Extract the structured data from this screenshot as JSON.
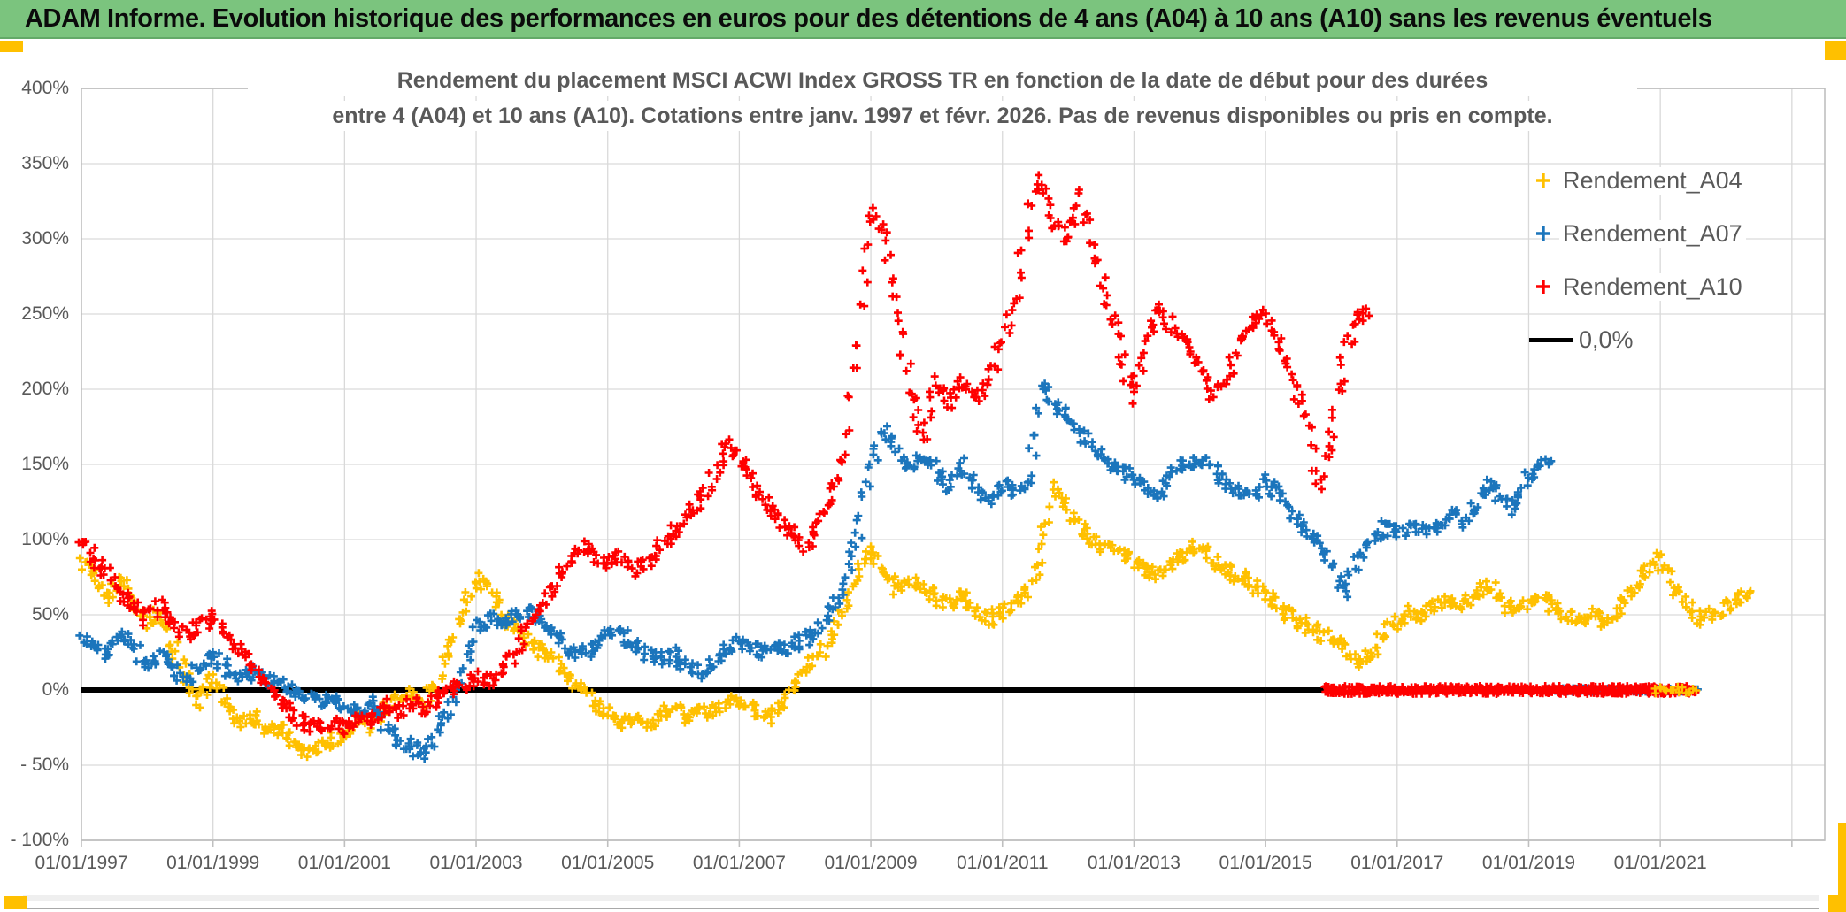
{
  "header": {
    "title": "ADAM Informe. Evolution historique des performances en euros pour des détentions de 4 ans (A04) à 10 ans (A10) sans les revenus éventuels",
    "bg_color": "#7BC47E",
    "accent_color": "#FFC000"
  },
  "chart_data": {
    "type": "scatter",
    "title_line1": "Rendement du placement MSCI ACWI Index GROSS TR en fonction de la date de début pour des durées",
    "title_line2": "entre 4 (A04) et 10 ans (A10). Cotations entre janv. 1997 et févr. 2026. Pas de revenus disponibles ou pris en compte.",
    "xlim": [
      1997.0,
      2023.5
    ],
    "ylim": [
      -100,
      400
    ],
    "grid": true,
    "legend_position": "right-inside",
    "y_ticks": [
      {
        "value": 400,
        "label": "400%"
      },
      {
        "value": 350,
        "label": "350%"
      },
      {
        "value": 300,
        "label": "300%"
      },
      {
        "value": 250,
        "label": "250%"
      },
      {
        "value": 200,
        "label": "200%"
      },
      {
        "value": 150,
        "label": "150%"
      },
      {
        "value": 100,
        "label": "100%"
      },
      {
        "value": 50,
        "label": "50%"
      },
      {
        "value": 0,
        "label": "0%"
      },
      {
        "value": -50,
        "label": "- 50%"
      },
      {
        "value": -100,
        "label": "- 100%"
      }
    ],
    "x_ticks": [
      {
        "year": 1997,
        "label": "01/01/1997"
      },
      {
        "year": 1999,
        "label": "01/01/1999"
      },
      {
        "year": 2001,
        "label": "01/01/2001"
      },
      {
        "year": 2003,
        "label": "01/01/2003"
      },
      {
        "year": 2005,
        "label": "01/01/2005"
      },
      {
        "year": 2007,
        "label": "01/01/2007"
      },
      {
        "year": 2009,
        "label": "01/01/2009"
      },
      {
        "year": 2011,
        "label": "01/01/2011"
      },
      {
        "year": 2013,
        "label": "01/01/2013"
      },
      {
        "year": 2015,
        "label": "01/01/2015"
      },
      {
        "year": 2017,
        "label": "01/01/2017"
      },
      {
        "year": 2019,
        "label": "01/01/2019"
      },
      {
        "year": 2021,
        "label": "01/01/2021"
      }
    ],
    "zero_line": {
      "label": "0,0%",
      "color": "#000000",
      "value": 0,
      "x_end": 2015.95
    },
    "series": [
      {
        "name": "Rendement_A04",
        "color": "#FFC000",
        "marker": "plus",
        "x_start": 1997.0,
        "x_step": 0.2,
        "values": [
          88,
          75,
          62,
          72,
          58,
          45,
          52,
          28,
          8,
          -8,
          12,
          -12,
          -22,
          -18,
          -28,
          -25,
          -35,
          -42,
          -38,
          -33,
          -28,
          -18,
          -25,
          -12,
          -6,
          -2,
          -8,
          6,
          30,
          55,
          75,
          68,
          50,
          42,
          32,
          26,
          20,
          10,
          0,
          -10,
          -16,
          -22,
          -18,
          -24,
          -16,
          -12,
          -20,
          -12,
          -16,
          -8,
          -6,
          -14,
          -20,
          -12,
          -2,
          12,
          22,
          38,
          55,
          78,
          92,
          78,
          66,
          72,
          66,
          62,
          56,
          66,
          52,
          46,
          52,
          58,
          66,
          95,
          135,
          120,
          108,
          100,
          95,
          90,
          86,
          80,
          76,
          86,
          92,
          96,
          86,
          80,
          76,
          70,
          64,
          55,
          50,
          44,
          38,
          34,
          30,
          18,
          24,
          38,
          45,
          52,
          48,
          55,
          60,
          56,
          66,
          70,
          60,
          52,
          58,
          62,
          55,
          48,
          46,
          50,
          44,
          58,
          66,
          78,
          88,
          70,
          58,
          46,
          50,
          55,
          62
        ],
        "zero_tail": [
          2020.9,
          2021.55
        ],
        "zero_tail_sparse": true
      },
      {
        "name": "Rendement_A07",
        "color": "#1B75BC",
        "marker": "plus",
        "x_start": 1997.0,
        "x_step": 0.2,
        "values": [
          35,
          28,
          24,
          38,
          30,
          16,
          22,
          12,
          8,
          16,
          22,
          14,
          10,
          12,
          8,
          5,
          0,
          -6,
          -8,
          -5,
          -10,
          -16,
          -8,
          -22,
          -32,
          -38,
          -42,
          -30,
          -12,
          15,
          40,
          48,
          42,
          50,
          52,
          45,
          36,
          28,
          24,
          28,
          36,
          38,
          30,
          24,
          20,
          24,
          16,
          12,
          18,
          26,
          32,
          28,
          24,
          30,
          28,
          34,
          42,
          52,
          72,
          105,
          150,
          175,
          158,
          150,
          156,
          146,
          136,
          150,
          132,
          126,
          136,
          132,
          142,
          200,
          190,
          182,
          170,
          160,
          152,
          146,
          140,
          134,
          130,
          144,
          150,
          155,
          148,
          140,
          134,
          130,
          140,
          130,
          118,
          108,
          98,
          88,
          65,
          85,
          98,
          108,
          104,
          110,
          104,
          110,
          116,
          112,
          124,
          136,
          128,
          120,
          140,
          152
        ],
        "zero_tail": [
          2019.3,
          2021.55
        ],
        "zero_tail_sparse": false
      },
      {
        "name": "Rendement_A10",
        "color": "#FF0000",
        "marker": "plus",
        "x_start": 1997.0,
        "x_step": 0.2,
        "values": [
          102,
          88,
          78,
          62,
          56,
          46,
          58,
          42,
          36,
          42,
          48,
          38,
          26,
          16,
          6,
          -6,
          -16,
          -24,
          -26,
          -20,
          -26,
          -16,
          -22,
          -10,
          -16,
          -8,
          -12,
          -5,
          -2,
          4,
          8,
          4,
          14,
          24,
          42,
          58,
          72,
          85,
          95,
          88,
          84,
          90,
          80,
          86,
          96,
          106,
          116,
          126,
          140,
          163,
          152,
          138,
          124,
          114,
          104,
          96,
          110,
          130,
          155,
          230,
          320,
          300,
          250,
          200,
          165,
          205,
          190,
          205,
          195,
          205,
          230,
          260,
          320,
          340,
          310,
          300,
          330,
          290,
          255,
          225,
          195,
          235,
          255,
          240,
          230,
          215,
          195,
          210,
          230,
          245,
          250,
          230,
          210,
          185,
          135,
          170,
          220,
          250
        ],
        "zero_tail": [
          2015.9,
          2021.55
        ],
        "zero_tail_sparse": false
      }
    ],
    "legend": {
      "items": [
        {
          "label": "Rendement_A04",
          "color": "#FFC000",
          "swatch": "plus"
        },
        {
          "label": "Rendement_A07",
          "color": "#1B75BC",
          "swatch": "plus"
        },
        {
          "label": "Rendement_A10",
          "color": "#FF0000",
          "swatch": "plus"
        },
        {
          "label": "0,0%",
          "color": "#000000",
          "swatch": "line"
        }
      ]
    }
  }
}
